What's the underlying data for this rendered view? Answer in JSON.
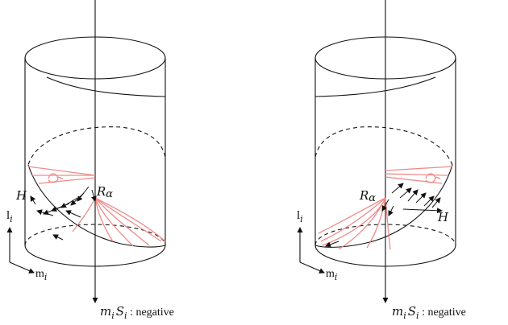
{
  "panels": [
    {
      "id": "left",
      "labels": {
        "h": "H",
        "r": "R",
        "r_sub": "α",
        "l_axis": "l",
        "l_sub": "i",
        "m_axis": "m",
        "m_sub": "i",
        "bottom_m": "m",
        "bottom_m_sub": "i",
        "bottom_s": "S",
        "bottom_s_sub": "i",
        "bottom_text": " :  negative"
      }
    },
    {
      "id": "right",
      "labels": {
        "h": "H",
        "r": "R",
        "r_sub": "α",
        "l_axis": "l",
        "l_sub": "i",
        "m_axis": "m",
        "m_sub": "i",
        "bottom_m": "m",
        "bottom_m_sub": "i",
        "bottom_s": "S",
        "bottom_s_sub": "i",
        "bottom_text": " :  negative"
      }
    }
  ],
  "colors": {
    "ink": "#111111",
    "field_lines": "#f08a8a"
  }
}
